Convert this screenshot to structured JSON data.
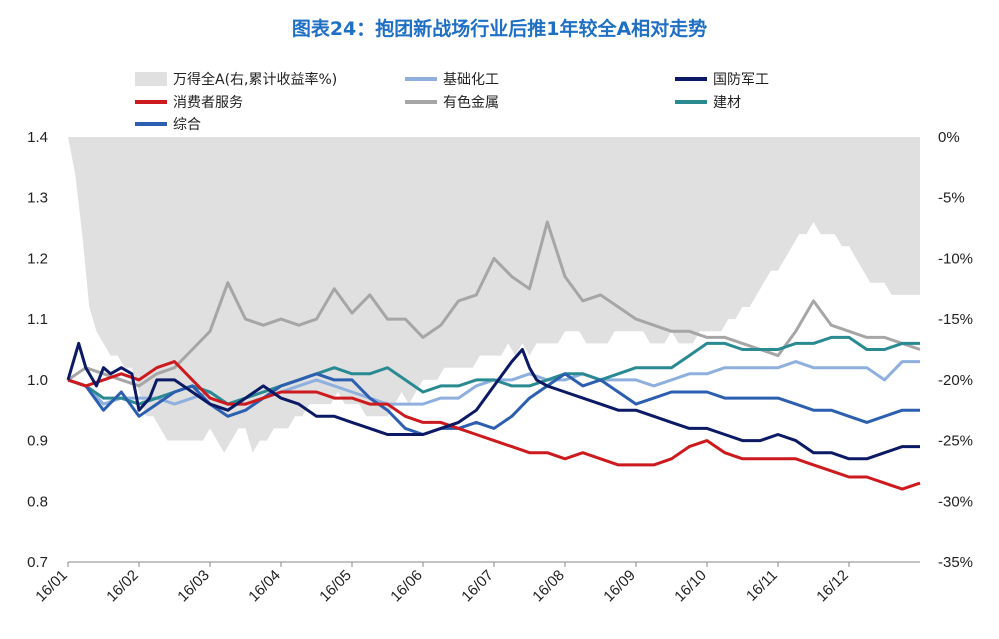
{
  "title": "图表24：抱团新战场行业后推1年较全A相对走势",
  "chart_data": {
    "type": "line",
    "title": "图表24：抱团新战场行业后推1年较全A相对走势",
    "x_labels": [
      "16/01",
      "16/02",
      "16/03",
      "16/04",
      "16/05",
      "16/06",
      "16/07",
      "16/08",
      "16/09",
      "16/10",
      "16/11",
      "16/12"
    ],
    "y_left": {
      "min": 0.7,
      "max": 1.4,
      "ticks": [
        "0.7",
        "0.8",
        "0.9",
        "1.0",
        "1.1",
        "1.2",
        "1.3",
        "1.4"
      ]
    },
    "y_right": {
      "min": -35,
      "max": 0,
      "ticks": [
        "0%",
        "-5%",
        "-10%",
        "-15%",
        "-20%",
        "-25%",
        "-30%",
        "-35%"
      ]
    },
    "area": {
      "name": "万得全A(右,累计收益率%)",
      "color": "#e0e0e0",
      "x": [
        0,
        0.1,
        0.2,
        0.3,
        0.4,
        0.5,
        0.6,
        0.7,
        0.8,
        0.9,
        1.0,
        1.1,
        1.2,
        1.3,
        1.4,
        1.5,
        1.6,
        1.7,
        1.8,
        1.9,
        2.0,
        2.1,
        2.2,
        2.3,
        2.4,
        2.5,
        2.6,
        2.7,
        2.8,
        2.9,
        3.0,
        3.1,
        3.2,
        3.3,
        3.4,
        3.5,
        3.6,
        3.7,
        3.8,
        3.9,
        4.0,
        4.1,
        4.2,
        4.3,
        4.4,
        4.5,
        4.6,
        4.7,
        4.8,
        4.9,
        5.0,
        5.1,
        5.2,
        5.3,
        5.4,
        5.5,
        5.6,
        5.7,
        5.8,
        5.9,
        6.0,
        6.1,
        6.2,
        6.3,
        6.4,
        6.5,
        6.6,
        6.7,
        6.8,
        6.9,
        7.0,
        7.1,
        7.2,
        7.3,
        7.4,
        7.5,
        7.6,
        7.7,
        7.8,
        7.9,
        8.0,
        8.1,
        8.2,
        8.3,
        8.4,
        8.5,
        8.6,
        8.7,
        8.8,
        8.9,
        9.0,
        9.1,
        9.2,
        9.3,
        9.4,
        9.5,
        9.6,
        9.7,
        9.8,
        9.9,
        10.0,
        10.1,
        10.2,
        10.3,
        10.4,
        10.5,
        10.6,
        10.7,
        10.8,
        10.9,
        11.0,
        11.1,
        11.2,
        11.3,
        11.4,
        11.5,
        11.6,
        11.7,
        11.8,
        11.9,
        12.0
      ],
      "values": [
        0,
        -3,
        -8,
        -14,
        -16,
        -17,
        -18,
        -18,
        -19,
        -19,
        -21,
        -23,
        -23,
        -24,
        -25,
        -25,
        -25,
        -25,
        -25,
        -25,
        -24,
        -25,
        -26,
        -25,
        -24,
        -24,
        -26,
        -25,
        -25,
        -24,
        -24,
        -24,
        -23,
        -23,
        -22,
        -22,
        -22,
        -22,
        -21,
        -22,
        -22,
        -22,
        -23,
        -23,
        -23,
        -23,
        -22,
        -21,
        -22,
        -21,
        -20,
        -20,
        -20,
        -19,
        -19,
        -19,
        -19,
        -19,
        -18,
        -18,
        -18,
        -18,
        -17,
        -18,
        -17,
        -18,
        -17,
        -17,
        -17,
        -17,
        -16,
        -16,
        -16,
        -17,
        -17,
        -17,
        -17,
        -16,
        -16,
        -16,
        -16,
        -16,
        -17,
        -17,
        -17,
        -16,
        -17,
        -17,
        -17,
        -16,
        -16,
        -16,
        -16,
        -15,
        -15,
        -14,
        -14,
        -13,
        -12,
        -11,
        -11,
        -10,
        -9,
        -8,
        -8,
        -7,
        -8,
        -8,
        -8,
        -9,
        -9,
        -10,
        -11,
        -12,
        -12,
        -12,
        -13,
        -13,
        -13,
        -13,
        -13
      ]
    },
    "series": [
      {
        "name": "基础化工",
        "color": "#8fb0de",
        "x": [
          0,
          0.25,
          0.5,
          0.75,
          1,
          1.25,
          1.5,
          1.75,
          2,
          2.25,
          2.5,
          2.75,
          3,
          3.25,
          3.5,
          3.75,
          4,
          4.25,
          4.5,
          4.75,
          5,
          5.25,
          5.5,
          5.75,
          6,
          6.25,
          6.5,
          6.75,
          7,
          7.25,
          7.5,
          7.75,
          8,
          8.25,
          8.5,
          8.75,
          9,
          9.25,
          9.5,
          9.75,
          10,
          10.25,
          10.5,
          10.75,
          11,
          11.25,
          11.5,
          11.75,
          12
        ],
        "values": [
          1.0,
          0.99,
          0.96,
          0.97,
          0.97,
          0.97,
          0.96,
          0.97,
          0.98,
          0.96,
          0.96,
          0.97,
          0.98,
          0.99,
          1.0,
          0.99,
          0.98,
          0.97,
          0.96,
          0.96,
          0.96,
          0.97,
          0.97,
          0.99,
          1.0,
          1.0,
          1.01,
          1.0,
          1.0,
          1.01,
          1.0,
          1.0,
          1.0,
          0.99,
          1.0,
          1.01,
          1.01,
          1.02,
          1.02,
          1.02,
          1.02,
          1.03,
          1.02,
          1.02,
          1.02,
          1.02,
          1.0,
          1.03,
          1.03
        ]
      },
      {
        "name": "国防军工",
        "color": "#0c1a66",
        "x": [
          0,
          0.15,
          0.25,
          0.4,
          0.5,
          0.6,
          0.75,
          0.9,
          1,
          1.15,
          1.25,
          1.4,
          1.5,
          1.75,
          2,
          2.25,
          2.5,
          2.75,
          3,
          3.25,
          3.5,
          3.75,
          4,
          4.25,
          4.5,
          4.75,
          5,
          5.25,
          5.5,
          5.75,
          6,
          6.25,
          6.4,
          6.5,
          6.6,
          6.75,
          7,
          7.25,
          7.5,
          7.75,
          8,
          8.25,
          8.5,
          8.75,
          9,
          9.25,
          9.5,
          9.75,
          10,
          10.25,
          10.5,
          10.75,
          11,
          11.25,
          11.5,
          11.75,
          12
        ],
        "values": [
          1.0,
          1.06,
          1.02,
          0.99,
          1.02,
          1.01,
          1.02,
          1.01,
          0.95,
          0.97,
          1.0,
          1.0,
          1.0,
          0.98,
          0.96,
          0.95,
          0.97,
          0.99,
          0.97,
          0.96,
          0.94,
          0.94,
          0.93,
          0.92,
          0.91,
          0.91,
          0.91,
          0.92,
          0.93,
          0.95,
          0.99,
          1.03,
          1.05,
          1.02,
          1.0,
          0.99,
          0.98,
          0.97,
          0.96,
          0.95,
          0.95,
          0.94,
          0.93,
          0.92,
          0.92,
          0.91,
          0.9,
          0.9,
          0.91,
          0.9,
          0.88,
          0.88,
          0.87,
          0.87,
          0.88,
          0.89,
          0.89
        ]
      },
      {
        "name": "消费者服务",
        "color": "#cc1a1e",
        "x": [
          0,
          0.25,
          0.5,
          0.75,
          1,
          1.25,
          1.5,
          1.75,
          2,
          2.25,
          2.5,
          2.75,
          3,
          3.25,
          3.5,
          3.75,
          4,
          4.25,
          4.5,
          4.75,
          5,
          5.25,
          5.5,
          5.75,
          6,
          6.25,
          6.5,
          6.75,
          7,
          7.25,
          7.5,
          7.75,
          8,
          8.25,
          8.5,
          8.75,
          9,
          9.25,
          9.5,
          9.75,
          10,
          10.25,
          10.5,
          10.75,
          11,
          11.25,
          11.5,
          11.75,
          12
        ],
        "values": [
          1.0,
          0.99,
          1.0,
          1.01,
          1.0,
          1.02,
          1.03,
          1.0,
          0.97,
          0.96,
          0.96,
          0.97,
          0.98,
          0.98,
          0.98,
          0.97,
          0.97,
          0.96,
          0.96,
          0.94,
          0.93,
          0.93,
          0.92,
          0.91,
          0.9,
          0.89,
          0.88,
          0.88,
          0.87,
          0.88,
          0.87,
          0.86,
          0.86,
          0.86,
          0.87,
          0.89,
          0.9,
          0.88,
          0.87,
          0.87,
          0.87,
          0.87,
          0.86,
          0.85,
          0.84,
          0.84,
          0.83,
          0.82,
          0.83
        ]
      },
      {
        "name": "有色金属",
        "color": "#a6a6a6",
        "x": [
          0,
          0.25,
          0.5,
          0.75,
          1,
          1.25,
          1.5,
          1.75,
          2,
          2.25,
          2.5,
          2.75,
          3,
          3.25,
          3.5,
          3.75,
          4,
          4.25,
          4.5,
          4.75,
          5,
          5.25,
          5.5,
          5.75,
          6,
          6.25,
          6.5,
          6.75,
          7,
          7.25,
          7.5,
          7.75,
          8,
          8.25,
          8.5,
          8.75,
          9,
          9.25,
          9.5,
          9.75,
          10,
          10.25,
          10.5,
          10.75,
          11,
          11.25,
          11.5,
          11.75,
          12
        ],
        "values": [
          1.0,
          1.02,
          1.01,
          1.0,
          0.99,
          1.01,
          1.02,
          1.05,
          1.08,
          1.16,
          1.1,
          1.09,
          1.1,
          1.09,
          1.1,
          1.15,
          1.11,
          1.14,
          1.1,
          1.1,
          1.07,
          1.09,
          1.13,
          1.14,
          1.2,
          1.17,
          1.15,
          1.26,
          1.17,
          1.13,
          1.14,
          1.12,
          1.1,
          1.09,
          1.08,
          1.08,
          1.07,
          1.07,
          1.06,
          1.05,
          1.04,
          1.08,
          1.13,
          1.09,
          1.08,
          1.07,
          1.07,
          1.06,
          1.05
        ]
      },
      {
        "name": "建材",
        "color": "#2a8a92",
        "x": [
          0,
          0.25,
          0.5,
          0.75,
          1,
          1.25,
          1.5,
          1.75,
          2,
          2.25,
          2.5,
          2.75,
          3,
          3.25,
          3.5,
          3.75,
          4,
          4.25,
          4.5,
          4.75,
          5,
          5.25,
          5.5,
          5.75,
          6,
          6.25,
          6.5,
          6.75,
          7,
          7.25,
          7.5,
          7.75,
          8,
          8.25,
          8.5,
          8.75,
          9,
          9.25,
          9.5,
          9.75,
          10,
          10.25,
          10.5,
          10.75,
          11,
          11.25,
          11.5,
          11.75,
          12
        ],
        "values": [
          1.0,
          0.99,
          0.97,
          0.97,
          0.96,
          0.97,
          0.98,
          0.99,
          0.98,
          0.96,
          0.97,
          0.98,
          0.99,
          1.0,
          1.01,
          1.02,
          1.01,
          1.01,
          1.02,
          1.0,
          0.98,
          0.99,
          0.99,
          1.0,
          1.0,
          0.99,
          0.99,
          1.0,
          1.01,
          1.01,
          1.0,
          1.01,
          1.02,
          1.02,
          1.02,
          1.04,
          1.06,
          1.06,
          1.05,
          1.05,
          1.05,
          1.06,
          1.06,
          1.07,
          1.07,
          1.05,
          1.05,
          1.06,
          1.06
        ]
      },
      {
        "name": "综合",
        "color": "#2d5fb0",
        "x": [
          0,
          0.25,
          0.5,
          0.75,
          1,
          1.25,
          1.5,
          1.75,
          2,
          2.25,
          2.5,
          2.75,
          3,
          3.25,
          3.5,
          3.75,
          4,
          4.25,
          4.5,
          4.75,
          5,
          5.25,
          5.5,
          5.75,
          6,
          6.25,
          6.5,
          6.75,
          7,
          7.25,
          7.5,
          7.75,
          8,
          8.25,
          8.5,
          8.75,
          9,
          9.25,
          9.5,
          9.75,
          10,
          10.25,
          10.5,
          10.75,
          11,
          11.25,
          11.5,
          11.75,
          12
        ],
        "values": [
          1.0,
          0.99,
          0.95,
          0.98,
          0.94,
          0.96,
          0.98,
          0.99,
          0.96,
          0.94,
          0.95,
          0.97,
          0.99,
          1.0,
          1.01,
          1.0,
          1.0,
          0.97,
          0.95,
          0.92,
          0.91,
          0.92,
          0.92,
          0.93,
          0.92,
          0.94,
          0.97,
          0.99,
          1.01,
          0.99,
          1.0,
          0.98,
          0.96,
          0.97,
          0.98,
          0.98,
          0.98,
          0.97,
          0.97,
          0.97,
          0.97,
          0.96,
          0.95,
          0.95,
          0.94,
          0.93,
          0.94,
          0.95,
          0.95
        ]
      }
    ]
  }
}
